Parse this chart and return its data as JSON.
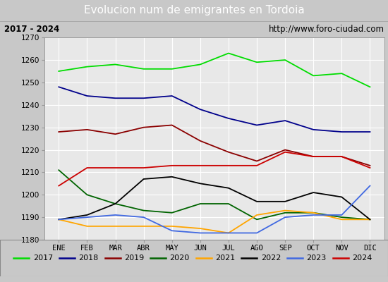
{
  "title": "Evolucion num de emigrantes en Tordoia",
  "subtitle_left": "2017 - 2024",
  "subtitle_right": "http://www.foro-ciudad.com",
  "months": [
    "ENE",
    "FEB",
    "MAR",
    "ABR",
    "MAY",
    "JUN",
    "JUL",
    "AGO",
    "SEP",
    "OCT",
    "NOV",
    "DIC"
  ],
  "series": {
    "2017": {
      "color": "#00dd00",
      "data": [
        1255,
        1257,
        1258,
        1256,
        1256,
        1258,
        1263,
        1259,
        1260,
        1253,
        1254,
        1248
      ]
    },
    "2018": {
      "color": "#00008b",
      "data": [
        1248,
        1244,
        1243,
        1243,
        1244,
        1238,
        1234,
        1231,
        1233,
        1229,
        1228,
        1228
      ]
    },
    "2019": {
      "color": "#8b0000",
      "data": [
        1228,
        1229,
        1227,
        1230,
        1231,
        1224,
        1219,
        1215,
        1220,
        1217,
        1217,
        1213
      ]
    },
    "2020": {
      "color": "#006400",
      "data": [
        1211,
        1200,
        1196,
        1193,
        1192,
        1196,
        1196,
        1189,
        1192,
        1192,
        1190,
        1189
      ]
    },
    "2021": {
      "color": "#ffa500",
      "data": [
        1189,
        1186,
        1186,
        1186,
        1186,
        1185,
        1183,
        1191,
        1193,
        1192,
        1189,
        1189
      ]
    },
    "2022": {
      "color": "#000000",
      "data": [
        1189,
        1191,
        1196,
        1207,
        1208,
        1205,
        1203,
        1197,
        1197,
        1201,
        1199,
        1189
      ]
    },
    "2023": {
      "color": "#4169e1",
      "data": [
        1189,
        1190,
        1191,
        1190,
        1184,
        1183,
        1183,
        1183,
        1190,
        1191,
        1191,
        1204
      ]
    },
    "2024": {
      "color": "#cc0000",
      "data": [
        1204,
        1212,
        1212,
        1212,
        1213,
        1213,
        1213,
        1213,
        1219,
        1217,
        1217,
        1212
      ]
    }
  },
  "ylim": [
    1180,
    1270
  ],
  "yticks": [
    1180,
    1190,
    1200,
    1210,
    1220,
    1230,
    1240,
    1250,
    1260,
    1270
  ],
  "title_bg_color": "#4a90d9",
  "title_text_color": "#ffffff",
  "plot_bg_color": "#e8e8e8",
  "subtitle_bg_color": "#f0f0f0",
  "outer_bg_color": "#c8c8c8",
  "grid_color": "#ffffff",
  "legend_order": [
    "2017",
    "2018",
    "2019",
    "2020",
    "2021",
    "2022",
    "2023",
    "2024"
  ]
}
